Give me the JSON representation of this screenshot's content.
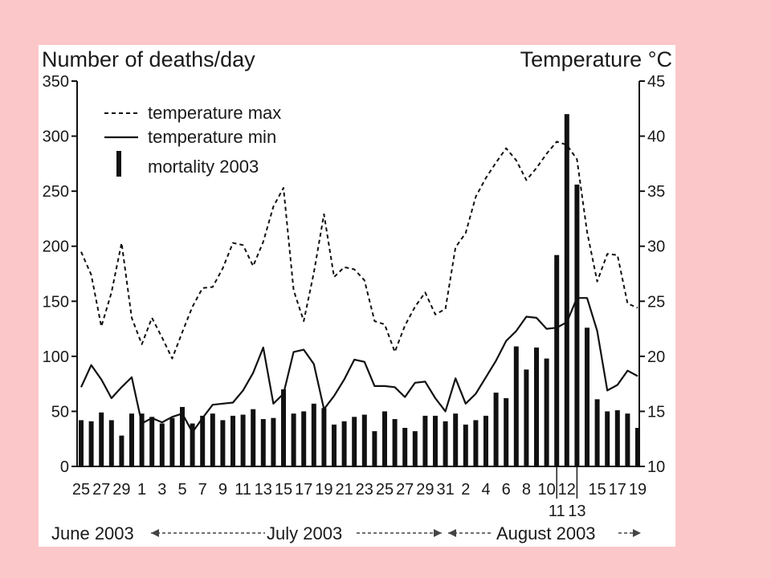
{
  "chart_data": {
    "type": "bar",
    "title_left": "Number of deaths/day",
    "title_right": "Temperature °C",
    "y_left": {
      "min": 0,
      "max": 350,
      "ticks": [
        0,
        50,
        100,
        150,
        200,
        250,
        300,
        350
      ]
    },
    "y_right": {
      "min": 10,
      "max": 45,
      "ticks": [
        10,
        15,
        20,
        25,
        30,
        35,
        40,
        45
      ]
    },
    "x_tick_labels": [
      "25",
      "27",
      "29",
      "1",
      "3",
      "5",
      "7",
      "9",
      "11",
      "13",
      "15",
      "17",
      "19",
      "21",
      "23",
      "25",
      "27",
      "29",
      "31",
      "2",
      "4",
      "6",
      "8",
      "10",
      "12",
      "15",
      "17",
      "19"
    ],
    "x_tick_index": [
      0,
      2,
      4,
      6,
      8,
      10,
      12,
      14,
      16,
      18,
      20,
      22,
      24,
      26,
      28,
      30,
      32,
      34,
      36,
      38,
      40,
      42,
      44,
      46,
      48,
      51,
      53,
      55
    ],
    "x_sub_labels": [
      "11",
      "13"
    ],
    "x_sub_index": [
      47,
      49
    ],
    "months": [
      {
        "label": "June 2003"
      },
      {
        "label": "July 2003"
      },
      {
        "label": "August 2003"
      }
    ],
    "legend": {
      "max_label": "temperature max",
      "min_label": "temperature min",
      "mortality_label": "mortality 2003"
    },
    "series": [
      {
        "name": "mortality 2003",
        "kind": "bar",
        "values": [
          42,
          41,
          49,
          42,
          28,
          48,
          48,
          45,
          39,
          44,
          54,
          39,
          46,
          48,
          42,
          46,
          47,
          52,
          43,
          44,
          70,
          48,
          50,
          57,
          53,
          38,
          41,
          45,
          47,
          32,
          50,
          43,
          35,
          32,
          46,
          46,
          41,
          48,
          38,
          42,
          46,
          67,
          62,
          109,
          88,
          108,
          98,
          192,
          320,
          256,
          126,
          61,
          50,
          51,
          48,
          35
        ]
      },
      {
        "name": "temperature max",
        "kind": "line-dashed",
        "values": [
          29.5,
          27.4,
          22.7,
          25.8,
          30.3,
          23.5,
          21.1,
          23.5,
          21.7,
          19.8,
          22.2,
          24.5,
          26.2,
          26.3,
          28.0,
          30.3,
          30.1,
          28.2,
          30.4,
          33.6,
          35.3,
          26.0,
          23.2,
          27.6,
          32.9,
          27.2,
          28.1,
          27.9,
          26.9,
          23.2,
          22.9,
          20.4,
          22.8,
          24.5,
          25.8,
          23.8,
          24.3,
          29.9,
          31.2,
          34.5,
          36.2,
          37.6,
          38.9,
          37.8,
          36.0,
          37.1,
          38.4,
          39.5,
          39.2,
          37.9,
          31.3,
          26.8,
          29.3,
          29.2,
          24.8,
          24.4
        ]
      },
      {
        "name": "temperature min",
        "kind": "line-solid",
        "values": [
          17.2,
          19.2,
          17.9,
          16.2,
          17.2,
          18.1,
          13.9,
          14.4,
          14.0,
          14.5,
          14.8,
          13.1,
          14.4,
          15.6,
          15.7,
          15.8,
          16.9,
          18.5,
          20.8,
          15.7,
          16.6,
          20.4,
          20.6,
          19.3,
          15.2,
          16.4,
          17.9,
          19.7,
          19.5,
          17.3,
          17.3,
          17.2,
          16.3,
          17.6,
          17.7,
          16.2,
          15.0,
          18.0,
          15.7,
          16.6,
          18.1,
          19.6,
          21.4,
          22.3,
          23.6,
          23.5,
          22.5,
          22.6,
          23.1,
          25.3,
          25.3,
          22.3,
          16.9,
          17.4,
          18.7,
          18.2
        ]
      }
    ]
  }
}
